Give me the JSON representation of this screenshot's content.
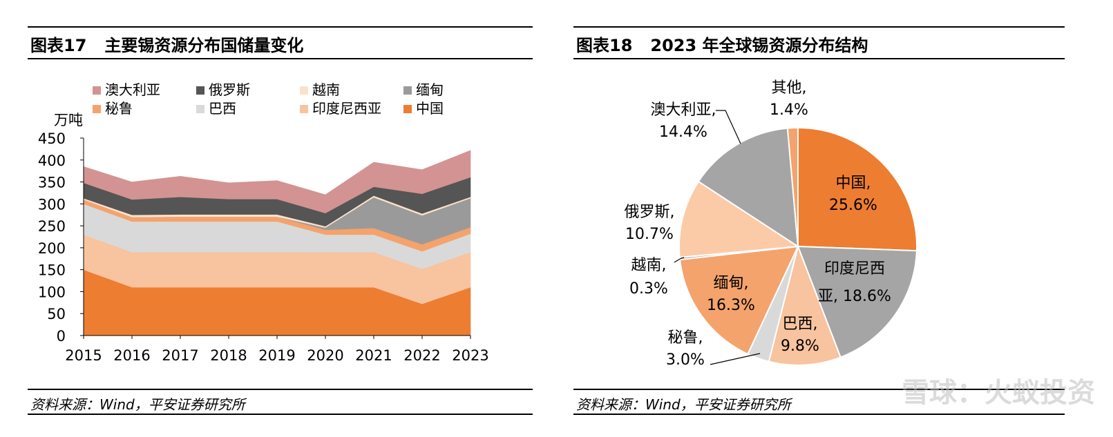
{
  "left": {
    "fig_no": "图表17",
    "title": "主要锡资源分布国储量变化",
    "source": "资料来源：Wind，平安证券研究所",
    "unit": "万吨"
  },
  "right": {
    "fig_no": "图表18",
    "title": "2023 年全球锡资源分布结构",
    "source": "资料来源：Wind，平安证券研究所"
  },
  "watermark": "雪球：火蚁投资",
  "chart_data": [
    {
      "type": "area",
      "stacked": true,
      "title": "主要锡资源分布国储量变化",
      "ylabel": "万吨",
      "ylim": [
        0,
        450
      ],
      "yticks": [
        0,
        50,
        100,
        150,
        200,
        250,
        300,
        350,
        400,
        450
      ],
      "x": [
        "2015",
        "2016",
        "2017",
        "2018",
        "2019",
        "2020",
        "2021",
        "2022",
        "2023"
      ],
      "legend": {
        "position": "top",
        "columns": 4
      },
      "series": [
        {
          "name": "中国",
          "color": "#ED7D31",
          "values": [
            150,
            110,
            110,
            110,
            110,
            110,
            110,
            72,
            110
          ]
        },
        {
          "name": "印度尼西亚",
          "color": "#F8C39F",
          "values": [
            80,
            80,
            80,
            80,
            80,
            80,
            80,
            80,
            80
          ]
        },
        {
          "name": "巴西",
          "color": "#D9D9D9",
          "values": [
            70,
            70,
            70,
            70,
            70,
            40,
            40,
            40,
            42
          ]
        },
        {
          "name": "秘鲁",
          "color": "#F4A36C",
          "values": [
            10,
            10,
            11,
            11,
            11,
            11,
            15,
            16,
            15
          ]
        },
        {
          "name": "缅甸",
          "color": "#9A9A9A",
          "values": [
            0,
            0,
            0,
            0,
            0,
            5,
            70,
            66,
            66
          ]
        },
        {
          "name": "越南",
          "color": "#FBE1CD",
          "values": [
            3,
            5,
            5,
            5,
            5,
            3,
            4,
            4,
            3
          ]
        },
        {
          "name": "俄罗斯",
          "color": "#555555",
          "values": [
            35,
            35,
            40,
            35,
            35,
            30,
            20,
            45,
            45
          ]
        },
        {
          "name": "澳大利亚",
          "color": "#D39393",
          "values": [
            37,
            40,
            47,
            37,
            42,
            42,
            56,
            55,
            61
          ]
        }
      ]
    },
    {
      "type": "pie",
      "title": "2023 年全球锡资源分布结构",
      "slices": [
        {
          "label": "中国",
          "value": 25.6,
          "text": "25.6%",
          "color": "#ED7D31"
        },
        {
          "label": "印度尼西亚",
          "value": 18.6,
          "text": "18.6%",
          "color": "#A5A5A5"
        },
        {
          "label": "巴西",
          "value": 9.8,
          "text": "9.8%",
          "color": "#F8C39F"
        },
        {
          "label": "秘鲁",
          "value": 3.0,
          "text": "3.0%",
          "color": "#D9D9D9"
        },
        {
          "label": "缅甸",
          "value": 16.3,
          "text": "16.3%",
          "color": "#F4A36C"
        },
        {
          "label": "越南",
          "value": 0.3,
          "text": "0.3%",
          "color": "#9A9A9A"
        },
        {
          "label": "俄罗斯",
          "value": 10.7,
          "text": "10.7%",
          "color": "#FBCBA8"
        },
        {
          "label": "澳大利亚",
          "value": 14.4,
          "text": "14.4%",
          "color": "#A5A5A5"
        },
        {
          "label": "其他",
          "value": 1.4,
          "text": "1.4%",
          "color": "#F4A36C"
        }
      ]
    }
  ]
}
